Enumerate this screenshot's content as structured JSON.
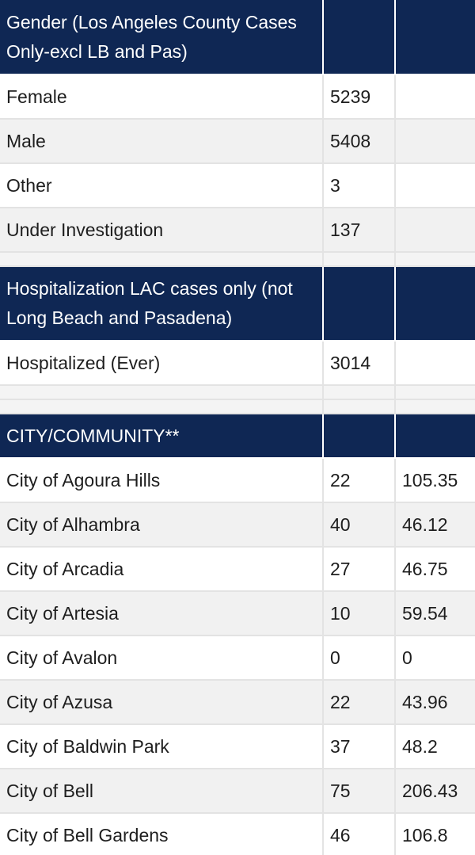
{
  "sections": [
    {
      "header": "Gender (Los Angeles County Cases Only-excl LB and Pas)",
      "rows": [
        {
          "label": "Female",
          "count": "5239",
          "rate": ""
        },
        {
          "label": "Male",
          "count": "5408",
          "rate": ""
        },
        {
          "label": "Other",
          "count": "3",
          "rate": ""
        },
        {
          "label": "Under Investigation",
          "count": "137",
          "rate": ""
        }
      ]
    },
    {
      "header": "Hospitalization LAC cases only (not Long Beach and Pasadena)",
      "rows": [
        {
          "label": "Hospitalized (Ever)",
          "count": "3014",
          "rate": ""
        }
      ]
    },
    {
      "header": "CITY/COMMUNITY**",
      "rows": [
        {
          "label": "City of Agoura Hills",
          "count": "22",
          "rate": "105.35"
        },
        {
          "label": "City of Alhambra",
          "count": "40",
          "rate": "46.12"
        },
        {
          "label": "City of Arcadia",
          "count": "27",
          "rate": "46.75"
        },
        {
          "label": "City of Artesia",
          "count": "10",
          "rate": "59.54"
        },
        {
          "label": "City of Avalon",
          "count": "0",
          "rate": "0"
        },
        {
          "label": "City of Azusa",
          "count": "22",
          "rate": "43.96"
        },
        {
          "label": "City of Baldwin Park",
          "count": "37",
          "rate": "48.2"
        },
        {
          "label": "City of Bell",
          "count": "75",
          "rate": "206.43"
        },
        {
          "label": "City of Bell Gardens",
          "count": "46",
          "rate": "106.8"
        }
      ]
    }
  ]
}
